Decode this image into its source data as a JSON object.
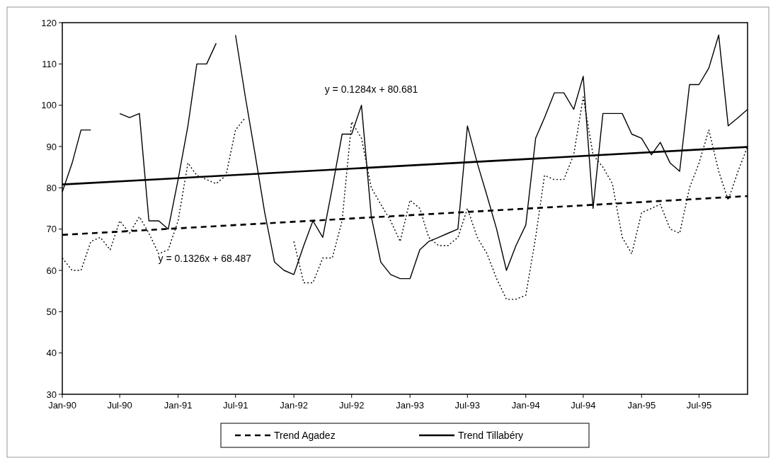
{
  "chart_data": {
    "type": "line",
    "grid": false,
    "legend": "bottom",
    "x": [
      "1990-01",
      "1990-02",
      "1990-03",
      "1990-04",
      "1990-05",
      "1990-06",
      "1990-07",
      "1990-08",
      "1990-09",
      "1990-10",
      "1990-11",
      "1990-12",
      "1991-01",
      "1991-02",
      "1991-03",
      "1991-04",
      "1991-05",
      "1991-06",
      "1991-07",
      "1991-08",
      "1991-09",
      "1991-10",
      "1991-11",
      "1991-12",
      "1992-01",
      "1992-02",
      "1992-03",
      "1992-04",
      "1992-05",
      "1992-06",
      "1992-07",
      "1992-08",
      "1992-09",
      "1992-10",
      "1992-11",
      "1992-12",
      "1993-01",
      "1993-02",
      "1993-03",
      "1993-04",
      "1993-05",
      "1993-06",
      "1993-07",
      "1993-08",
      "1993-09",
      "1993-10",
      "1993-11",
      "1993-12",
      "1994-01",
      "1994-02",
      "1994-03",
      "1994-04",
      "1994-05",
      "1994-06",
      "1994-07",
      "1994-08",
      "1994-09",
      "1994-10",
      "1994-11",
      "1994-12",
      "1995-01",
      "1995-02",
      "1995-03",
      "1995-04",
      "1995-05",
      "1995-06",
      "1995-07",
      "1995-08",
      "1995-09",
      "1995-10",
      "1995-11",
      "1995-12"
    ],
    "xlim": [
      "1990-01",
      "1995-12"
    ],
    "xticks": [
      {
        "value": "1990-01",
        "label": "Jan-90"
      },
      {
        "value": "1990-07",
        "label": "Jul-90"
      },
      {
        "value": "1991-01",
        "label": "Jan-91"
      },
      {
        "value": "1991-07",
        "label": "Jul-91"
      },
      {
        "value": "1992-01",
        "label": "Jan-92"
      },
      {
        "value": "1992-07",
        "label": "Jul-92"
      },
      {
        "value": "1993-01",
        "label": "Jan-93"
      },
      {
        "value": "1993-07",
        "label": "Jul-93"
      },
      {
        "value": "1994-01",
        "label": "Jan-94"
      },
      {
        "value": "1994-07",
        "label": "Jul-94"
      },
      {
        "value": "1995-01",
        "label": "Jan-95"
      },
      {
        "value": "1995-07",
        "label": "Jul-95"
      }
    ],
    "ylim": [
      30,
      120
    ],
    "yticks": [
      30,
      40,
      50,
      60,
      70,
      80,
      90,
      100,
      110,
      120
    ],
    "series": [
      {
        "color": "#000000",
        "line_style": "dotted",
        "values": [
          63,
          60,
          60,
          67,
          68,
          65,
          72,
          69,
          73,
          69,
          64,
          65,
          72,
          86,
          83,
          82,
          81,
          83,
          94,
          97,
          null,
          null,
          null,
          null,
          67,
          57,
          57,
          63,
          63,
          72,
          96,
          92,
          80,
          76,
          72,
          67,
          77,
          75,
          68,
          66,
          66,
          68,
          75,
          68,
          64,
          58,
          53,
          53,
          54,
          68,
          83,
          82,
          82,
          88,
          102,
          88,
          85,
          81,
          68,
          64,
          74,
          75,
          76,
          70,
          69,
          80,
          86,
          94,
          84,
          77,
          84,
          90
        ]
      },
      {
        "color": "#000000",
        "line_style": "solid",
        "values": [
          79,
          86,
          94,
          94,
          null,
          null,
          98,
          97,
          98,
          72,
          72,
          70,
          82,
          95,
          110,
          110,
          115,
          null,
          117,
          102,
          88,
          74,
          62,
          60,
          59,
          66,
          72,
          68,
          80,
          93,
          93,
          100,
          73,
          62,
          59,
          58,
          58,
          65,
          67,
          68,
          69,
          70,
          95,
          86,
          78,
          70,
          60,
          66,
          71,
          92,
          97,
          103,
          103,
          99,
          107,
          75,
          98,
          98,
          98,
          93,
          92,
          88,
          91,
          86,
          84,
          105,
          105,
          109,
          117,
          95,
          97,
          99
        ]
      },
      {
        "name": "Trend Agadez",
        "type": "line",
        "color": "#000000",
        "line_style": "dashed",
        "x": [
          "1990-01",
          "1995-12"
        ],
        "values": [
          68.6,
          78.0
        ]
      },
      {
        "name": "Trend Tillabéry",
        "type": "line",
        "color": "#000000",
        "line_style": "solid",
        "x": [
          "1990-01",
          "1995-12"
        ],
        "values": [
          80.8,
          89.9
        ]
      }
    ],
    "annotations": [
      "y = 0.1284x + 80.681",
      "y = 0.1326x + 68.487"
    ]
  }
}
